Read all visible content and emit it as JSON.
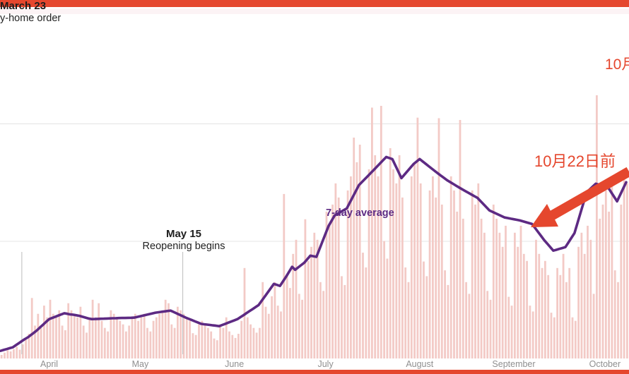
{
  "page": {
    "top_bar_color": "#e5472e",
    "bottom_bar_color": "#e5472e",
    "header_band_color": "#fcf3f5"
  },
  "colors": {
    "bar": "#f3cac6",
    "line": "#5d2a83",
    "accent_red": "#e5472e",
    "axis_text": "#8f8f8f",
    "gridline": "#e4e4e4",
    "event_line": "#bbbbbb"
  },
  "annotations": {
    "march23": {
      "title": "March 23",
      "subtitle": "y-home order"
    },
    "may15": {
      "title": "May 15",
      "subtitle": "Reopening begins"
    },
    "avg_label": "7-day average",
    "jp_arrow_label": "10月22日前",
    "jp_top_right": "10月"
  },
  "chart_data": {
    "type": "bar+line",
    "x_unit": "day",
    "months": [
      {
        "label": "April",
        "day_index": 16
      },
      {
        "label": "May",
        "day_index": 46
      },
      {
        "label": "June",
        "day_index": 77
      },
      {
        "label": "July",
        "day_index": 107
      },
      {
        "label": "August",
        "day_index": 138
      },
      {
        "label": "September",
        "day_index": 169
      },
      {
        "label": "October",
        "day_index": 199
      }
    ],
    "events": [
      {
        "date": "March 23",
        "day_index": 7
      },
      {
        "date": "May 15",
        "day_index": 60
      }
    ],
    "ylim": [
      0,
      4500
    ],
    "gridline_values": [
      2000,
      4000
    ],
    "series": [
      {
        "name": "daily_cases",
        "type": "bar",
        "values": [
          60,
          100,
          140,
          120,
          160,
          200,
          150,
          240,
          320,
          420,
          1030,
          560,
          760,
          520,
          900,
          700,
          1000,
          760,
          700,
          820,
          560,
          480,
          940,
          820,
          760,
          700,
          880,
          560,
          440,
          700,
          1000,
          700,
          940,
          640,
          520,
          460,
          820,
          760,
          700,
          640,
          580,
          460,
          560,
          700,
          760,
          640,
          700,
          760,
          520,
          460,
          640,
          700,
          760,
          820,
          1000,
          940,
          580,
          520,
          880,
          820,
          760,
          700,
          640,
          430,
          400,
          580,
          640,
          580,
          520,
          460,
          340,
          310,
          580,
          520,
          700,
          460,
          400,
          350,
          420,
          640,
          1540,
          700,
          580,
          520,
          440,
          520,
          1300,
          880,
          760,
          1060,
          1300,
          900,
          800,
          2800,
          1420,
          1200,
          1780,
          2020,
          1100,
          1000,
          2370,
          1660,
          1900,
          2140,
          2020,
          1300,
          1150,
          2500,
          2260,
          2620,
          2980,
          2740,
          1400,
          1250,
          2860,
          3100,
          3760,
          3340,
          3640,
          1800,
          1550,
          3220,
          4270,
          3460,
          3100,
          4300,
          2000,
          1700,
          3580,
          3220,
          2980,
          3460,
          2740,
          1550,
          1300,
          3100,
          3340,
          4100,
          2980,
          1650,
          1400,
          2860,
          3100,
          2740,
          4090,
          2620,
          1500,
          1250,
          3100,
          2860,
          2500,
          4060,
          2380,
          1300,
          1100,
          2860,
          2620,
          2980,
          2380,
          2140,
          1150,
          1000,
          2620,
          2380,
          2140,
          1900,
          2260,
          1050,
          900,
          2140,
          1900,
          2260,
          1780,
          1660,
          900,
          800,
          2020,
          1780,
          1540,
          1660,
          1420,
          780,
          700,
          1540,
          1420,
          1780,
          1300,
          1540,
          700,
          640,
          1900,
          2140,
          1780,
          2260,
          2020,
          1100,
          4480,
          2380,
          2620,
          2860,
          2500,
          2980,
          1500,
          1300,
          2620,
          3100,
          2980
        ]
      },
      {
        "name": "7-day average",
        "type": "line",
        "values": [
          130,
          145,
          160,
          175,
          190,
          225,
          260,
          295,
          330,
          360,
          400,
          440,
          480,
          530,
          575,
          625,
          670,
          690,
          710,
          730,
          750,
          770,
          760,
          750,
          745,
          735,
          725,
          710,
          695,
          680,
          670,
          672,
          674,
          676,
          678,
          680,
          682,
          685,
          686,
          688,
          689,
          690,
          692,
          693,
          695,
          707,
          719,
          731,
          743,
          755,
          767,
          780,
          787,
          794,
          801,
          808,
          815,
          791,
          767,
          743,
          719,
          695,
          674,
          653,
          632,
          611,
          590,
          583,
          577,
          570,
          563,
          557,
          550,
          570,
          590,
          610,
          630,
          650,
          670,
          704,
          738,
          773,
          807,
          841,
          876,
          910,
          982,
          1054,
          1126,
          1198,
          1270,
          1253,
          1235,
          1313,
          1390,
          1475,
          1560,
          1510,
          1550,
          1590,
          1630,
          1690,
          1750,
          1740,
          1730,
          1861,
          1993,
          2124,
          2255,
          2345,
          2435,
          2465,
          2495,
          2525,
          2555,
          2654,
          2753,
          2851,
          2950,
          3003,
          3056,
          3109,
          3162,
          3215,
          3269,
          3323,
          3376,
          3430,
          3413,
          3395,
          3287,
          3178,
          3070,
          3130,
          3190,
          3250,
          3310,
          3353,
          3395,
          3354,
          3313,
          3272,
          3231,
          3190,
          3151,
          3112,
          3074,
          3035,
          3004,
          2973,
          2942,
          2911,
          2880,
          2851,
          2822,
          2793,
          2764,
          2735,
          2681,
          2627,
          2574,
          2520,
          2496,
          2472,
          2448,
          2424,
          2400,
          2390,
          2380,
          2370,
          2360,
          2350,
          2335,
          2320,
          2305,
          2290,
          2221,
          2152,
          2084,
          2015,
          1955,
          1895,
          1835,
          1850,
          1865,
          1880,
          1895,
          1975,
          2055,
          2135,
          2309,
          2483,
          2656,
          2830,
          2878,
          2927,
          2975,
          2960,
          2945,
          2930,
          2915,
          2835,
          2755,
          2675,
          2783,
          2892,
          3000
        ]
      }
    ]
  }
}
